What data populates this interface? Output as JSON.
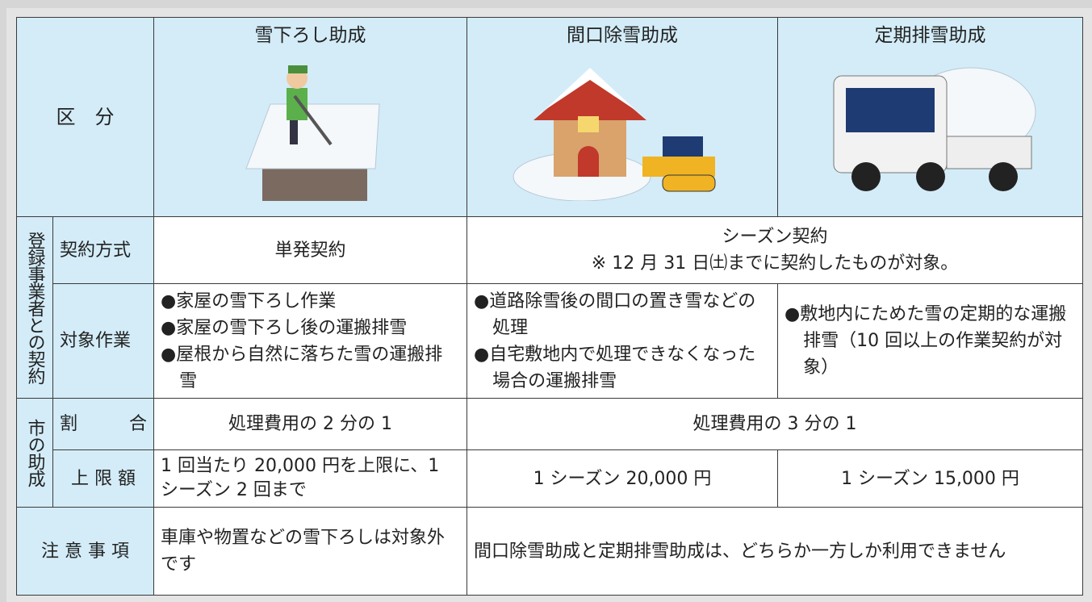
{
  "table": {
    "header": {
      "category": "区　分",
      "columns": [
        "雪下ろし助成",
        "間口除雪助成",
        "定期排雪助成"
      ]
    },
    "group_contract": "登録事業者との契約",
    "group_subsidy": "市の助成",
    "contract_method": {
      "label": "契約方式",
      "snow_removal": "単発契約",
      "season": "シーズン契約",
      "season_note": "※ 12 月 31 日㈯までに契約したものが対象。"
    },
    "work": {
      "label": "対象作業",
      "snow_removal": [
        "●家屋の雪下ろし作業",
        "●家屋の雪下ろし後の運搬排雪",
        "●屋根から自然に落ちた雪の運搬排雪"
      ],
      "frontage": [
        "●道路除雪後の間口の置き雪などの処理",
        "●自宅敷地内で処理できなくなった場合の運搬排雪"
      ],
      "regular": [
        "●敷地内にためた雪の定期的な運搬排雪（10 回以上の作業契約が対象）"
      ]
    },
    "ratio": {
      "label": "割　合",
      "snow_removal": "処理費用の 2 分の 1",
      "others": "処理費用の 3 分の 1"
    },
    "limit": {
      "label": "上 限 額",
      "snow_removal": "1 回当たり 20,000 円を上限に、1 シーズン 2 回まで",
      "frontage": "1 シーズン 20,000 円",
      "regular": "1 シーズン 15,000 円"
    },
    "notes": {
      "label": "注 意 事 項",
      "snow_removal": "車庫や物置などの雪下ろしは対象外です",
      "others": "間口除雪助成と定期排雪助成は、どちらか一方しか利用できません"
    }
  }
}
